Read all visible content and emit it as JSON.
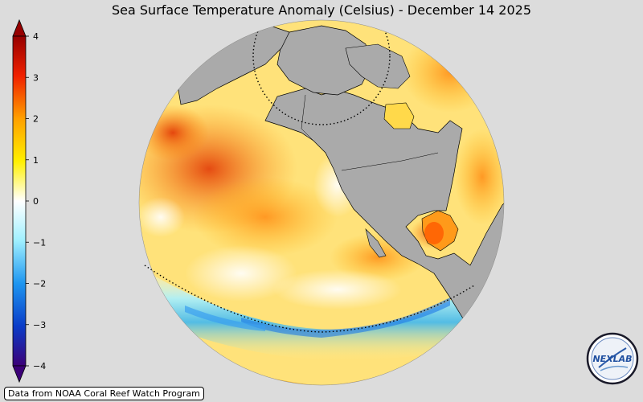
{
  "title": "Sea Surface Temperature Anomaly (Celsius) - December 14 2025",
  "colorbar": {
    "ticks": [
      "4",
      "3",
      "2",
      "1",
      "0",
      "−1",
      "−2",
      "−3",
      "−4"
    ],
    "min": -4,
    "max": 4,
    "colors": [
      "#3c0078",
      "#0a3cc8",
      "#1e96f0",
      "#a0f0ff",
      "#ffffff",
      "#fff000",
      "#ffa000",
      "#f02000",
      "#960000"
    ]
  },
  "credit": "Data from NOAA Coral Reef Watch Program",
  "logo": {
    "text": "NEXLAB"
  },
  "colors": {
    "background": "#dcdcdc",
    "land": "#aaaaaa",
    "ocean_base": "#ffe580"
  }
}
